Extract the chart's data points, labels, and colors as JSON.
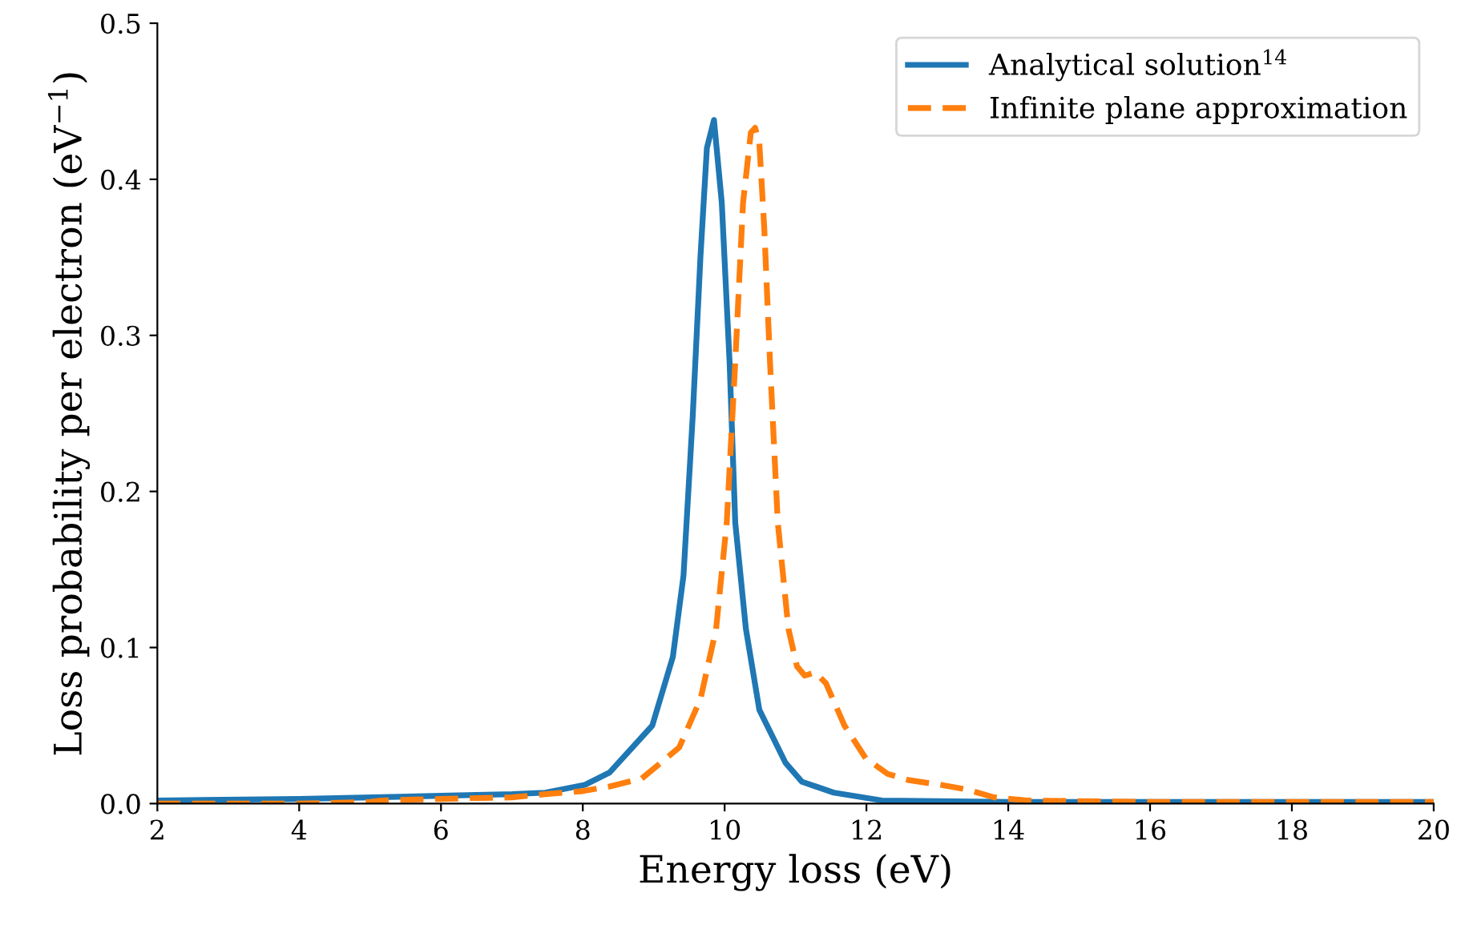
{
  "chart_data": {
    "type": "line",
    "xlabel": "Energy loss (eV)",
    "ylabel": "Loss probability per electron (eV$^{−1}$)",
    "xlim": [
      2,
      20
    ],
    "ylim": [
      0,
      0.5
    ],
    "xticks": [
      2,
      4,
      6,
      8,
      10,
      12,
      14,
      16,
      18,
      20
    ],
    "yticks": [
      {
        "value": 0,
        "label": "0.0"
      },
      0.1,
      0.2,
      0.3,
      0.4,
      0.5
    ],
    "grid": false,
    "legend": "top right",
    "marker": "none",
    "series": [
      {
        "name": "Analytical solution$^{14}$",
        "color": "#1f77b4",
        "line_style": "solid",
        "x": [
          2,
          4,
          6,
          7,
          7.47,
          8.03,
          8.38,
          8.98,
          9.27,
          9.42,
          9.55,
          9.66,
          9.75,
          9.85,
          9.96,
          10.07,
          10.15,
          10.3,
          10.49,
          10.86,
          11.09,
          11.54,
          12.22,
          14,
          16,
          20
        ],
        "values": [
          0.002,
          0.003,
          0.005,
          0.006,
          0.007,
          0.012,
          0.02,
          0.05,
          0.094,
          0.146,
          0.248,
          0.351,
          0.42,
          0.438,
          0.385,
          0.283,
          0.18,
          0.112,
          0.06,
          0.026,
          0.014,
          0.007,
          0.002,
          0.001,
          0.001,
          0.001
        ]
      },
      {
        "name": "Infinite plane approximation",
        "color": "#ff7f0e",
        "line_style": "dashed",
        "x": [
          2,
          4,
          5.0,
          5.17,
          6,
          7,
          7.47,
          8,
          8.38,
          8.83,
          9.36,
          9.66,
          9.88,
          10.03,
          10.15,
          10.26,
          10.37,
          10.43,
          10.49,
          10.56,
          10.64,
          10.75,
          10.9,
          11.02,
          11.13,
          11.28,
          11.43,
          11.69,
          11.99,
          12.3,
          12.6,
          13.05,
          13.42,
          13.8,
          14.26,
          16,
          20
        ],
        "values": [
          0.0,
          0.0,
          0.001,
          0.002,
          0.003,
          0.004,
          0.006,
          0.008,
          0.011,
          0.016,
          0.036,
          0.067,
          0.112,
          0.18,
          0.283,
          0.385,
          0.43,
          0.433,
          0.423,
          0.368,
          0.283,
          0.18,
          0.112,
          0.088,
          0.082,
          0.084,
          0.077,
          0.05,
          0.029,
          0.019,
          0.015,
          0.012,
          0.009,
          0.004,
          0.002,
          0.001,
          0.001
        ]
      }
    ]
  }
}
